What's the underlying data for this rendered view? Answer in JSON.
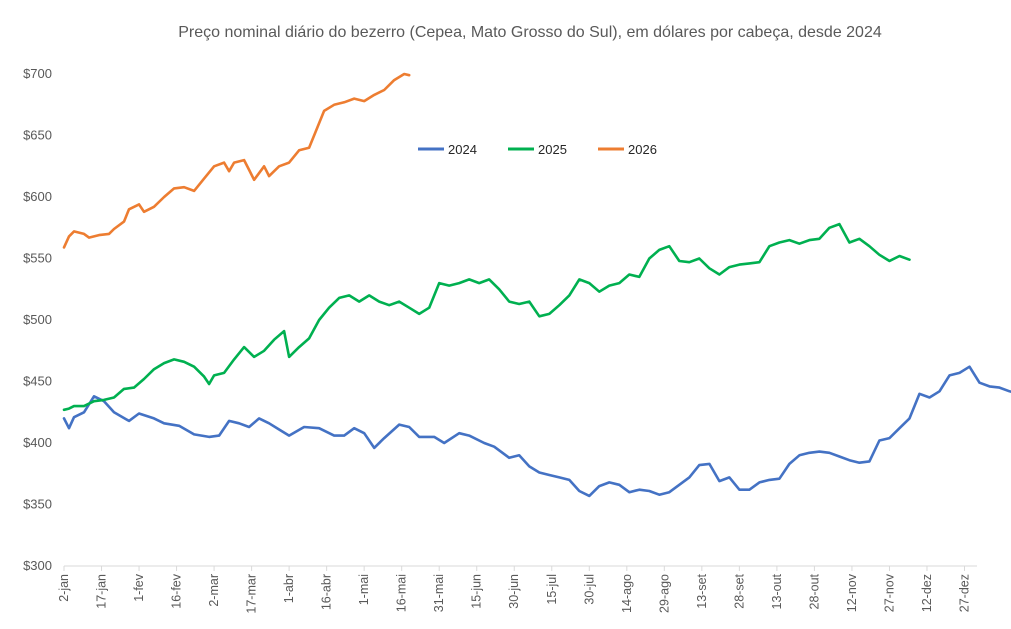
{
  "chart_data": {
    "type": "line",
    "title": "Preço nominal diário do bezerro (Cepea, Mato Grosso do Sul), em dólares por cabeça, desde 2024",
    "xlabel": "",
    "ylabel": "",
    "ylim": [
      300,
      700
    ],
    "y_ticks": [
      "$300",
      "$350",
      "$400",
      "$450",
      "$500",
      "$550",
      "$600",
      "$650",
      "$700"
    ],
    "x_ticks": [
      "2-jan",
      "17-jan",
      "1-fev",
      "16-fev",
      "2-mar",
      "17-mar",
      "1-abr",
      "16-abr",
      "1-mai",
      "16-mai",
      "31-mai",
      "15-jun",
      "30-jun",
      "15-jul",
      "30-jul",
      "14-ago",
      "29-ago",
      "13-set",
      "28-set",
      "13-out",
      "28-out",
      "12-nov",
      "27-nov",
      "12-dez",
      "27-dez"
    ],
    "grid": false,
    "legend": "top-center",
    "series": [
      {
        "name": "2024",
        "color": "#4472C4",
        "points": [
          [
            0,
            420
          ],
          [
            2,
            412
          ],
          [
            4,
            421
          ],
          [
            8,
            425
          ],
          [
            12,
            438
          ],
          [
            16,
            434
          ],
          [
            20,
            425
          ],
          [
            26,
            418
          ],
          [
            30,
            424
          ],
          [
            36,
            420
          ],
          [
            40,
            416
          ],
          [
            46,
            414
          ],
          [
            52,
            407
          ],
          [
            58,
            405
          ],
          [
            62,
            406
          ],
          [
            66,
            418
          ],
          [
            70,
            416
          ],
          [
            74,
            413
          ],
          [
            78,
            420
          ],
          [
            82,
            416
          ],
          [
            86,
            411
          ],
          [
            90,
            406
          ],
          [
            96,
            413
          ],
          [
            102,
            412
          ],
          [
            108,
            406
          ],
          [
            112,
            406
          ],
          [
            116,
            412
          ],
          [
            120,
            408
          ],
          [
            124,
            396
          ],
          [
            128,
            404
          ],
          [
            134,
            415
          ],
          [
            138,
            413
          ],
          [
            142,
            405
          ],
          [
            148,
            405
          ],
          [
            152,
            400
          ],
          [
            158,
            408
          ],
          [
            162,
            406
          ],
          [
            168,
            400
          ],
          [
            172,
            397
          ],
          [
            178,
            388
          ],
          [
            182,
            390
          ],
          [
            186,
            381
          ],
          [
            190,
            376
          ],
          [
            194,
            374
          ],
          [
            198,
            372
          ],
          [
            202,
            370
          ],
          [
            206,
            361
          ],
          [
            210,
            357
          ],
          [
            214,
            365
          ],
          [
            218,
            368
          ],
          [
            222,
            366
          ],
          [
            226,
            360
          ],
          [
            230,
            362
          ],
          [
            234,
            361
          ],
          [
            238,
            358
          ],
          [
            242,
            360
          ],
          [
            246,
            366
          ],
          [
            250,
            372
          ],
          [
            254,
            382
          ],
          [
            258,
            383
          ],
          [
            262,
            369
          ],
          [
            266,
            372
          ],
          [
            270,
            362
          ],
          [
            274,
            362
          ],
          [
            278,
            368
          ],
          [
            282,
            370
          ],
          [
            286,
            371
          ],
          [
            290,
            383
          ],
          [
            294,
            390
          ],
          [
            298,
            392
          ],
          [
            302,
            393
          ],
          [
            306,
            392
          ],
          [
            310,
            389
          ],
          [
            314,
            386
          ],
          [
            318,
            384
          ],
          [
            322,
            385
          ],
          [
            326,
            402
          ],
          [
            330,
            404
          ],
          [
            334,
            412
          ],
          [
            338,
            420
          ],
          [
            342,
            440
          ],
          [
            346,
            437
          ],
          [
            350,
            442
          ],
          [
            354,
            455
          ],
          [
            358,
            457
          ],
          [
            362,
            462
          ],
          [
            366,
            449
          ],
          [
            370,
            446
          ],
          [
            374,
            445
          ],
          [
            378,
            442
          ],
          [
            382,
            440
          ],
          [
            386,
            436
          ],
          [
            390,
            427
          ],
          [
            394,
            437
          ],
          [
            398,
            427
          ],
          [
            402,
            426
          ]
        ]
      },
      {
        "name": "2025",
        "color": "#00B050",
        "points": [
          [
            0,
            427
          ],
          [
            2,
            428
          ],
          [
            4,
            430
          ],
          [
            8,
            430
          ],
          [
            12,
            434
          ],
          [
            16,
            435
          ],
          [
            20,
            437
          ],
          [
            24,
            444
          ],
          [
            28,
            445
          ],
          [
            32,
            452
          ],
          [
            36,
            460
          ],
          [
            40,
            465
          ],
          [
            44,
            468
          ],
          [
            48,
            466
          ],
          [
            52,
            462
          ],
          [
            56,
            454
          ],
          [
            58,
            448
          ],
          [
            60,
            455
          ],
          [
            64,
            457
          ],
          [
            68,
            468
          ],
          [
            72,
            478
          ],
          [
            76,
            470
          ],
          [
            80,
            475
          ],
          [
            84,
            484
          ],
          [
            88,
            491
          ],
          [
            90,
            470
          ],
          [
            94,
            478
          ],
          [
            98,
            485
          ],
          [
            102,
            500
          ],
          [
            106,
            510
          ],
          [
            110,
            518
          ],
          [
            114,
            520
          ],
          [
            118,
            515
          ],
          [
            122,
            520
          ],
          [
            126,
            515
          ],
          [
            130,
            512
          ],
          [
            134,
            515
          ],
          [
            138,
            510
          ],
          [
            142,
            505
          ],
          [
            146,
            510
          ],
          [
            150,
            530
          ],
          [
            154,
            528
          ],
          [
            158,
            530
          ],
          [
            162,
            533
          ],
          [
            166,
            530
          ],
          [
            170,
            533
          ],
          [
            174,
            525
          ],
          [
            178,
            515
          ],
          [
            182,
            513
          ],
          [
            186,
            515
          ],
          [
            190,
            503
          ],
          [
            194,
            505
          ],
          [
            198,
            512
          ],
          [
            202,
            520
          ],
          [
            206,
            533
          ],
          [
            210,
            530
          ],
          [
            214,
            523
          ],
          [
            218,
            528
          ],
          [
            222,
            530
          ],
          [
            226,
            537
          ],
          [
            230,
            535
          ],
          [
            234,
            550
          ],
          [
            238,
            557
          ],
          [
            242,
            560
          ],
          [
            246,
            548
          ],
          [
            250,
            547
          ],
          [
            254,
            550
          ],
          [
            258,
            542
          ],
          [
            262,
            537
          ],
          [
            266,
            543
          ],
          [
            270,
            545
          ],
          [
            274,
            546
          ],
          [
            278,
            547
          ],
          [
            282,
            560
          ],
          [
            286,
            563
          ],
          [
            290,
            565
          ],
          [
            294,
            562
          ],
          [
            298,
            565
          ],
          [
            302,
            566
          ],
          [
            306,
            575
          ],
          [
            310,
            578
          ],
          [
            314,
            563
          ],
          [
            318,
            566
          ],
          [
            322,
            560
          ],
          [
            326,
            553
          ],
          [
            330,
            548
          ],
          [
            334,
            552
          ],
          [
            338,
            549
          ]
        ]
      },
      {
        "name": "2026",
        "color": "#ED7D31",
        "points": [
          [
            0,
            559
          ],
          [
            2,
            568
          ],
          [
            4,
            572
          ],
          [
            8,
            570
          ],
          [
            10,
            567
          ],
          [
            14,
            569
          ],
          [
            18,
            570
          ],
          [
            20,
            574
          ],
          [
            24,
            580
          ],
          [
            26,
            590
          ],
          [
            30,
            594
          ],
          [
            32,
            588
          ],
          [
            36,
            592
          ],
          [
            40,
            600
          ],
          [
            44,
            607
          ],
          [
            48,
            608
          ],
          [
            52,
            605
          ],
          [
            56,
            615
          ],
          [
            60,
            625
          ],
          [
            64,
            628
          ],
          [
            66,
            621
          ],
          [
            68,
            628
          ],
          [
            72,
            630
          ],
          [
            74,
            622
          ],
          [
            76,
            614
          ],
          [
            80,
            625
          ],
          [
            82,
            617
          ],
          [
            86,
            625
          ],
          [
            90,
            628
          ],
          [
            94,
            638
          ],
          [
            98,
            640
          ],
          [
            100,
            650
          ],
          [
            104,
            670
          ],
          [
            108,
            675
          ],
          [
            112,
            677
          ],
          [
            116,
            680
          ],
          [
            120,
            678
          ],
          [
            124,
            683
          ],
          [
            128,
            687
          ],
          [
            132,
            695
          ],
          [
            136,
            700
          ],
          [
            138,
            699
          ]
        ]
      }
    ]
  }
}
